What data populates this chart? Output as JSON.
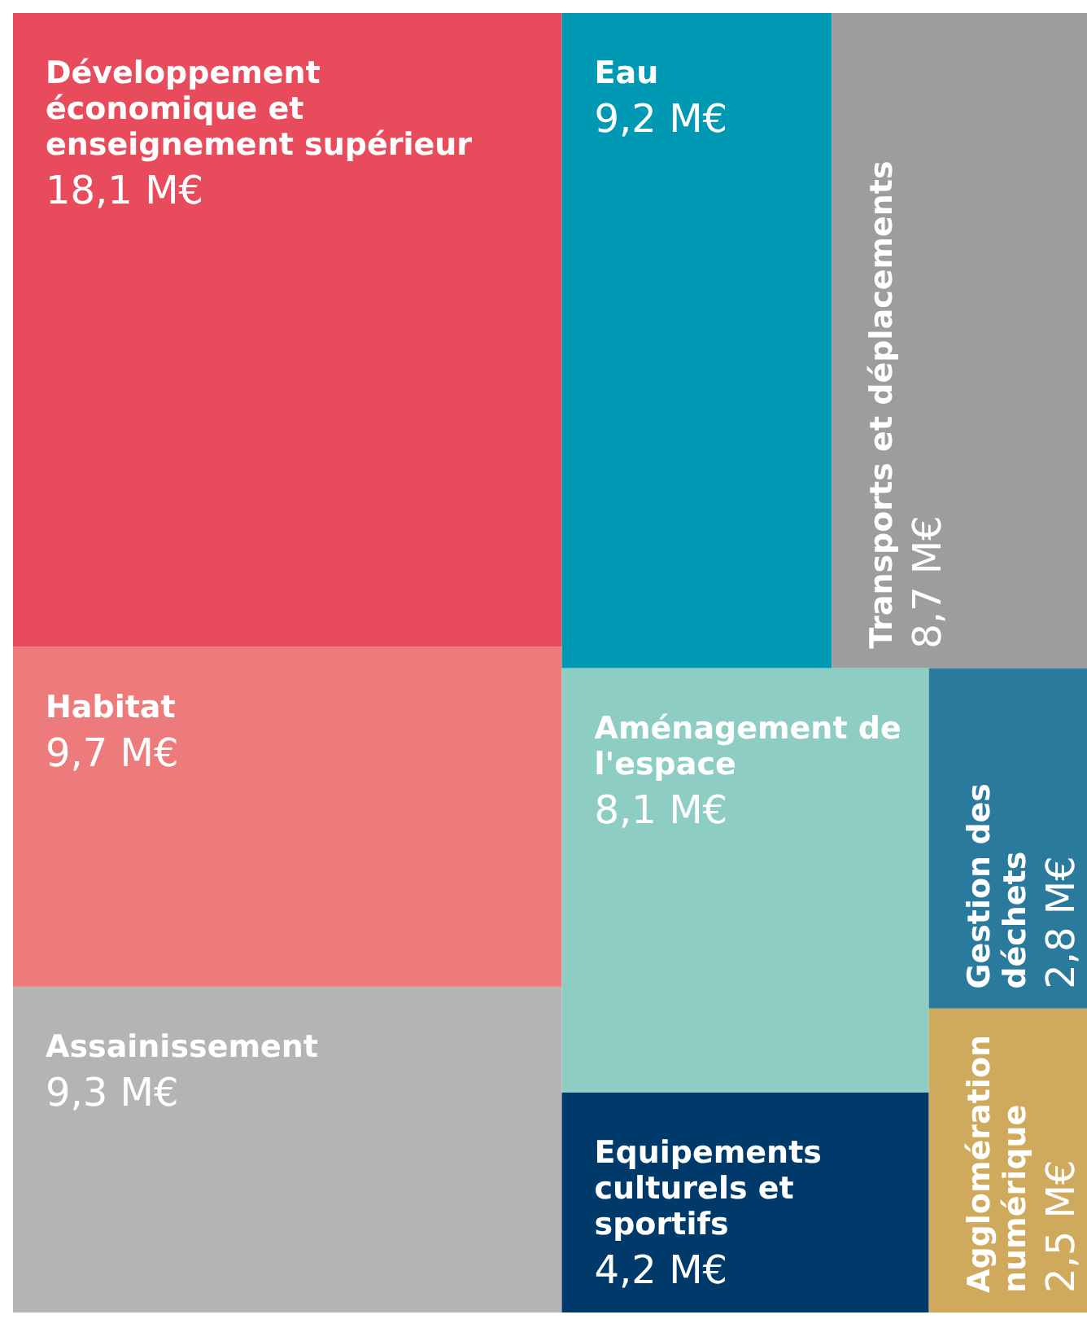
{
  "chart_data": {
    "type": "other",
    "categories": [
      "Développement économique et enseignement supérieur",
      "Habitat",
      "Assainissement",
      "Eau",
      "Transports et déplacements",
      "Aménagement de l'espace",
      "Equipements culturels et sportifs",
      "Gestion des déchets",
      "Agglomération numérique"
    ],
    "values": [
      18.1,
      9.7,
      9.3,
      9.2,
      8.7,
      8.1,
      4.2,
      2.8,
      2.5
    ],
    "value_labels": [
      "18,1 M€",
      "9,7 M€",
      "9,3 M€",
      "9,2 M€",
      "8,7 M€",
      "8,1 M€",
      "4,2 M€",
      "2,8 M€",
      "2,5 M€"
    ],
    "colors": [
      "#e84c5c",
      "#ee7b7b",
      "#b4b4b6",
      "#0099b4",
      "#9d9d9f",
      "#8ecdc3",
      "#003a6b",
      "#2a7a9e",
      "#d0aa5c"
    ]
  }
}
